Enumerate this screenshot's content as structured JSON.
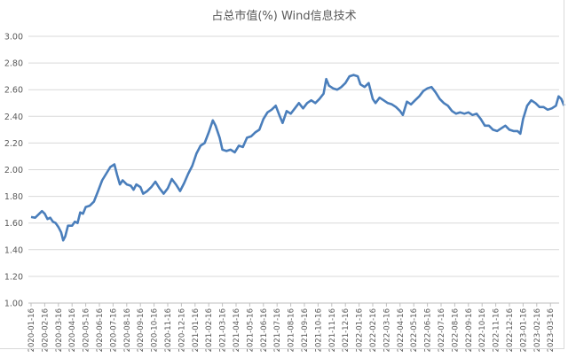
{
  "chart_data": {
    "type": "line",
    "title": "占总市值(%) Wind信息技术",
    "xlabel": "",
    "ylabel": "",
    "ylim": [
      1.0,
      3.0
    ],
    "y_ticks": [
      "1.00",
      "1.20",
      "1.40",
      "1.60",
      "1.80",
      "2.00",
      "2.20",
      "2.40",
      "2.60",
      "2.80",
      "3.00"
    ],
    "grid": true,
    "legend": "none",
    "categories": [
      "2020-01-16",
      "2020-02-16",
      "2020-03-16",
      "2020-04-16",
      "2020-05-16",
      "2020-06-16",
      "2020-07-16",
      "2020-08-16",
      "2020-09-16",
      "2020-10-16",
      "2020-11-16",
      "2020-12-16",
      "2021-01-16",
      "2021-02-16",
      "2021-03-16",
      "2021-04-16",
      "2021-05-16",
      "2021-06-16",
      "2021-07-16",
      "2021-08-16",
      "2021-09-16",
      "2021-10-16",
      "2021-11-16",
      "2021-12-16",
      "2022-01-16",
      "2022-02-16",
      "2022-03-16",
      "2022-04-16",
      "2022-05-16",
      "2022-06-16",
      "2022-07-16",
      "2022-08-16",
      "2022-09-16",
      "2022-10-16",
      "2022-11-16",
      "2022-12-16",
      "2023-01-16",
      "2023-02-16",
      "2023-03-16"
    ],
    "series": [
      {
        "name": "Wind信息技术 占总市值(%)",
        "color": "#4a7ebb",
        "values": [
          1.65,
          1.68,
          1.5,
          1.64,
          1.72,
          1.94,
          2.01,
          1.88,
          1.84,
          1.91,
          1.84,
          2.02,
          2.18,
          2.36,
          2.16,
          2.18,
          2.28,
          2.38,
          2.46,
          2.43,
          2.5,
          2.52,
          2.62,
          2.69,
          2.66,
          2.55,
          2.5,
          2.46,
          2.52,
          2.63,
          2.53,
          2.44,
          2.42,
          2.36,
          2.31,
          2.3,
          2.51,
          2.46,
          2.54
        ]
      }
    ],
    "detail_points": [
      [
        0,
        1.645
      ],
      [
        0.3,
        1.64
      ],
      [
        0.5,
        1.66
      ],
      [
        0.8,
        1.69
      ],
      [
        1,
        1.67
      ],
      [
        1.2,
        1.63
      ],
      [
        1.4,
        1.64
      ],
      [
        1.6,
        1.61
      ],
      [
        1.8,
        1.6
      ],
      [
        2.0,
        1.57
      ],
      [
        2.2,
        1.53
      ],
      [
        2.35,
        1.47
      ],
      [
        2.5,
        1.5
      ],
      [
        2.7,
        1.58
      ],
      [
        3.0,
        1.58
      ],
      [
        3.2,
        1.61
      ],
      [
        3.4,
        1.6
      ],
      [
        3.6,
        1.68
      ],
      [
        3.8,
        1.67
      ],
      [
        4.0,
        1.72
      ],
      [
        4.3,
        1.73
      ],
      [
        4.6,
        1.76
      ],
      [
        4.9,
        1.84
      ],
      [
        5.2,
        1.92
      ],
      [
        5.5,
        1.97
      ],
      [
        5.8,
        2.02
      ],
      [
        6.1,
        2.04
      ],
      [
        6.3,
        1.96
      ],
      [
        6.5,
        1.89
      ],
      [
        6.7,
        1.92
      ],
      [
        7.0,
        1.89
      ],
      [
        7.3,
        1.88
      ],
      [
        7.5,
        1.85
      ],
      [
        7.7,
        1.89
      ],
      [
        8.0,
        1.87
      ],
      [
        8.2,
        1.82
      ],
      [
        8.5,
        1.84
      ],
      [
        8.8,
        1.87
      ],
      [
        9.1,
        1.91
      ],
      [
        9.4,
        1.86
      ],
      [
        9.7,
        1.82
      ],
      [
        10.0,
        1.86
      ],
      [
        10.3,
        1.93
      ],
      [
        10.6,
        1.89
      ],
      [
        10.9,
        1.84
      ],
      [
        11.2,
        1.9
      ],
      [
        11.5,
        1.97
      ],
      [
        11.8,
        2.03
      ],
      [
        12.1,
        2.12
      ],
      [
        12.4,
        2.18
      ],
      [
        12.7,
        2.2
      ],
      [
        13.0,
        2.28
      ],
      [
        13.3,
        2.37
      ],
      [
        13.5,
        2.33
      ],
      [
        13.8,
        2.24
      ],
      [
        14.0,
        2.15
      ],
      [
        14.3,
        2.14
      ],
      [
        14.6,
        2.15
      ],
      [
        14.9,
        2.13
      ],
      [
        15.2,
        2.18
      ],
      [
        15.5,
        2.17
      ],
      [
        15.8,
        2.24
      ],
      [
        16.1,
        2.25
      ],
      [
        16.4,
        2.28
      ],
      [
        16.7,
        2.3
      ],
      [
        17.0,
        2.38
      ],
      [
        17.3,
        2.43
      ],
      [
        17.6,
        2.45
      ],
      [
        17.9,
        2.48
      ],
      [
        18.2,
        2.4
      ],
      [
        18.4,
        2.35
      ],
      [
        18.7,
        2.44
      ],
      [
        19.0,
        2.42
      ],
      [
        19.3,
        2.46
      ],
      [
        19.6,
        2.5
      ],
      [
        19.9,
        2.46
      ],
      [
        20.2,
        2.5
      ],
      [
        20.5,
        2.52
      ],
      [
        20.8,
        2.5
      ],
      [
        21.1,
        2.53
      ],
      [
        21.4,
        2.57
      ],
      [
        21.6,
        2.68
      ],
      [
        21.8,
        2.63
      ],
      [
        22.1,
        2.61
      ],
      [
        22.4,
        2.6
      ],
      [
        22.7,
        2.62
      ],
      [
        23.0,
        2.65
      ],
      [
        23.3,
        2.7
      ],
      [
        23.6,
        2.71
      ],
      [
        23.9,
        2.7
      ],
      [
        24.1,
        2.64
      ],
      [
        24.4,
        2.62
      ],
      [
        24.7,
        2.65
      ],
      [
        25.0,
        2.53
      ],
      [
        25.2,
        2.5
      ],
      [
        25.5,
        2.54
      ],
      [
        25.8,
        2.52
      ],
      [
        26.1,
        2.5
      ],
      [
        26.4,
        2.49
      ],
      [
        26.7,
        2.47
      ],
      [
        27.0,
        2.44
      ],
      [
        27.2,
        2.41
      ],
      [
        27.5,
        2.51
      ],
      [
        27.8,
        2.49
      ],
      [
        28.1,
        2.52
      ],
      [
        28.4,
        2.55
      ],
      [
        28.7,
        2.59
      ],
      [
        29.0,
        2.61
      ],
      [
        29.3,
        2.62
      ],
      [
        29.6,
        2.58
      ],
      [
        29.9,
        2.53
      ],
      [
        30.2,
        2.5
      ],
      [
        30.5,
        2.48
      ],
      [
        30.8,
        2.44
      ],
      [
        31.1,
        2.42
      ],
      [
        31.4,
        2.43
      ],
      [
        31.7,
        2.42
      ],
      [
        32.0,
        2.43
      ],
      [
        32.3,
        2.41
      ],
      [
        32.6,
        2.42
      ],
      [
        32.9,
        2.38
      ],
      [
        33.2,
        2.33
      ],
      [
        33.5,
        2.33
      ],
      [
        33.8,
        2.3
      ],
      [
        34.1,
        2.29
      ],
      [
        34.4,
        2.31
      ],
      [
        34.7,
        2.33
      ],
      [
        35.0,
        2.3
      ],
      [
        35.3,
        2.29
      ],
      [
        35.6,
        2.29
      ],
      [
        35.8,
        2.27
      ],
      [
        36.0,
        2.38
      ],
      [
        36.3,
        2.48
      ],
      [
        36.6,
        2.52
      ],
      [
        36.9,
        2.5
      ],
      [
        37.2,
        2.47
      ],
      [
        37.5,
        2.47
      ],
      [
        37.8,
        2.45
      ],
      [
        38.1,
        2.46
      ],
      [
        38.4,
        2.48
      ],
      [
        38.6,
        2.55
      ],
      [
        38.8,
        2.53
      ],
      [
        39.0,
        2.48
      ]
    ]
  }
}
